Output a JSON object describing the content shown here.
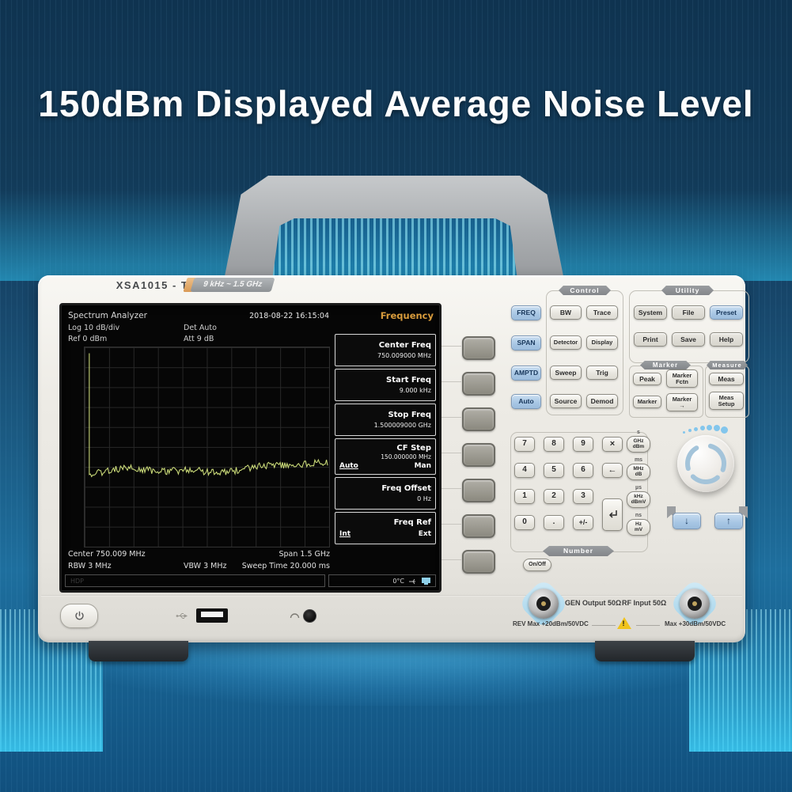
{
  "headline": "150dBm Displayed Average Noise Level",
  "device": {
    "model": "XSA1015 - TG",
    "range_badge": "9 kHz ~ 1.5 GHz"
  },
  "screen": {
    "app_title": "Spectrum Analyzer",
    "datetime": "2018-08-22 16:15:04",
    "menu_title": "Frequency",
    "log": "Log 10 dB/div",
    "ref": "Ref 0 dBm",
    "det": "Det Auto",
    "att": "Att 9 dB",
    "center": "Center 750.009 MHz",
    "span": "Span 1.5 GHz",
    "rbw": "RBW 3 MHz",
    "vbw": "VBW 3 MHz",
    "sweep": "Sweep Time 20.000 ms",
    "status_left": "HDP",
    "temp": "0°C",
    "menu": [
      {
        "label": "Center Freq",
        "value": "750.009000 MHz"
      },
      {
        "label": "Start Freq",
        "value": "9.000 kHz"
      },
      {
        "label": "Stop Freq",
        "value": "1.500009000 GHz"
      },
      {
        "label": "CF Step",
        "value": "150.000000 MHz",
        "opt1": "Auto",
        "opt2": "Man"
      },
      {
        "label": "Freq Offset",
        "value": "0 Hz"
      },
      {
        "label": "Freq Ref",
        "opt1": "Int",
        "opt2": "Ext"
      }
    ],
    "trace_color": "#d6e77f"
  },
  "panel": {
    "left_keys": [
      "FREQ",
      "SPAN",
      "AMPTD",
      "Auto"
    ],
    "control": {
      "label": "Control",
      "keys": [
        "BW",
        "Trace",
        "Detector",
        "Display",
        "Sweep",
        "Trig",
        "Source",
        "Demod"
      ]
    },
    "utility": {
      "label": "Utility",
      "keys": [
        "System",
        "File",
        "Preset",
        "Print",
        "Save",
        "Help"
      ]
    },
    "marker": {
      "label": "Marker",
      "keys": [
        "Peak",
        "Marker\nFctn",
        "Marker",
        "Marker\n→"
      ]
    },
    "measure": {
      "label": "Measure",
      "keys": [
        "Meas",
        "Meas\nSetup"
      ]
    },
    "number": {
      "label": "Number",
      "digits": [
        "7",
        "8",
        "9",
        "4",
        "5",
        "6",
        "1",
        "2",
        "3",
        "0",
        ".",
        "+/-"
      ],
      "cancel": "×",
      "backspace": "←"
    },
    "units": [
      {
        "tag": "s",
        "text": "GHz\ndBm"
      },
      {
        "tag": "ms",
        "text": "MHz\ndB"
      },
      {
        "tag": "µs",
        "text": "kHz\ndBmV"
      },
      {
        "tag": "ns",
        "text": "Hz\nmV"
      }
    ],
    "onoff": "On/Off",
    "arrow_down": "↓",
    "arrow_up": "↑"
  },
  "io": {
    "gen_label": "GEN Output 50Ω",
    "rf_label": "RF Input 50Ω",
    "rev_max": "REV Max +20dBm/50VDC",
    "max": "Max +30dBm/50VDC"
  }
}
